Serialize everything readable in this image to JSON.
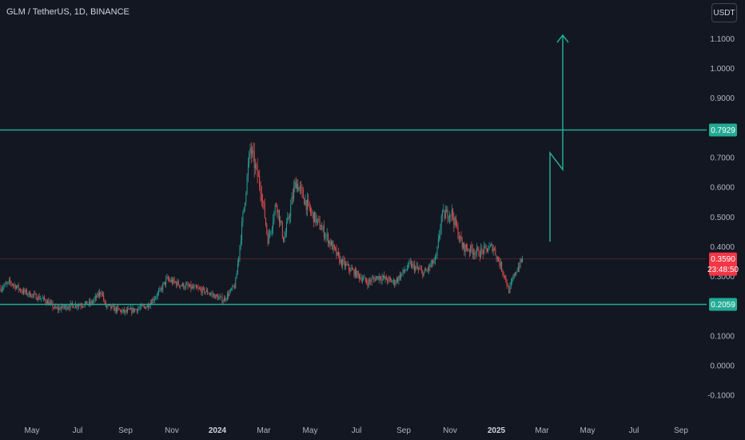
{
  "header": {
    "title": "GLM / TetherUS, 1D, BINANCE",
    "currency_label": "USDT"
  },
  "colors": {
    "background": "#131722",
    "text": "#b2b5be",
    "up": "#26a69a",
    "down": "#ef5350",
    "level_line": "#22ab94",
    "price_tag": "#f23645"
  },
  "price_axis": {
    "ticks": [
      "1.1000",
      "1.0000",
      "0.9000",
      "0.7000",
      "0.6000",
      "0.5000",
      "0.4000",
      "0.3000",
      "0.1000",
      "0.0000",
      "-0.1000"
    ]
  },
  "time_axis": {
    "labels": [
      "May",
      "Jul",
      "Sep",
      "Nov",
      "2024",
      "Mar",
      "May",
      "Jul",
      "Sep",
      "Nov",
      "2025",
      "Mar",
      "May",
      "Jul",
      "Sep"
    ]
  },
  "levels": {
    "resistance": "0.7929",
    "support": "0.2059"
  },
  "current_price": {
    "price": "0.3590",
    "countdown": "23:48:50"
  },
  "chart_data": {
    "type": "candlestick",
    "ylim": [
      -0.1,
      1.1
    ],
    "horizontal_lines": [
      0.7929,
      0.2059
    ],
    "last_price": 0.359,
    "projection_path": [
      [
        0.42,
        0.7
      ],
      [
        0.7,
        0.65
      ],
      [
        1.12,
        0.0
      ]
    ],
    "price_path": [
      [
        "2023-04-01",
        0.26
      ],
      [
        "2023-04-15",
        0.28
      ],
      [
        "2023-05-01",
        0.25
      ],
      [
        "2023-06-01",
        0.22
      ],
      [
        "2023-06-15",
        0.19
      ],
      [
        "2023-07-01",
        0.2
      ],
      [
        "2023-08-01",
        0.21
      ],
      [
        "2023-08-15",
        0.25
      ],
      [
        "2023-08-20",
        0.2
      ],
      [
        "2023-09-15",
        0.18
      ],
      [
        "2023-10-15",
        0.2
      ],
      [
        "2023-11-01",
        0.25
      ],
      [
        "2023-11-10",
        0.29
      ],
      [
        "2023-12-01",
        0.27
      ],
      [
        "2024-01-01",
        0.25
      ],
      [
        "2024-01-25",
        0.22
      ],
      [
        "2024-02-10",
        0.27
      ],
      [
        "2024-02-18",
        0.45
      ],
      [
        "2024-03-01",
        0.73
      ],
      [
        "2024-03-15",
        0.6
      ],
      [
        "2024-03-25",
        0.42
      ],
      [
        "2024-04-05",
        0.55
      ],
      [
        "2024-04-15",
        0.42
      ],
      [
        "2024-05-01",
        0.62
      ],
      [
        "2024-05-20",
        0.52
      ],
      [
        "2024-06-10",
        0.44
      ],
      [
        "2024-06-30",
        0.35
      ],
      [
        "2024-07-15",
        0.32
      ],
      [
        "2024-08-05",
        0.28
      ],
      [
        "2024-08-20",
        0.3
      ],
      [
        "2024-09-10",
        0.28
      ],
      [
        "2024-10-01",
        0.34
      ],
      [
        "2024-10-20",
        0.31
      ],
      [
        "2024-11-05",
        0.36
      ],
      [
        "2024-11-12",
        0.5
      ],
      [
        "2024-11-25",
        0.52
      ],
      [
        "2024-12-10",
        0.4
      ],
      [
        "2025-01-01",
        0.38
      ],
      [
        "2025-01-20",
        0.4
      ],
      [
        "2025-02-05",
        0.3
      ],
      [
        "2025-02-10",
        0.25
      ],
      [
        "2025-02-20",
        0.32
      ],
      [
        "2025-03-01",
        0.359
      ]
    ]
  }
}
